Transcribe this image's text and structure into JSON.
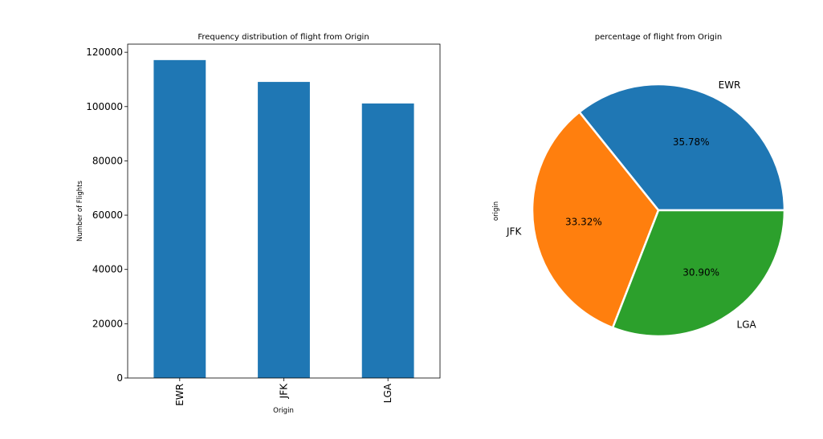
{
  "chart_data": [
    {
      "type": "bar",
      "title": "Frequency distribution of flight from Origin",
      "xlabel": "Origin",
      "ylabel": "Number of Flights",
      "categories": [
        "EWR",
        "JFK",
        "LGA"
      ],
      "values": [
        117127,
        109079,
        101140
      ],
      "ylim": [
        0,
        123000
      ],
      "yticks": [
        0,
        20000,
        40000,
        60000,
        80000,
        100000,
        120000
      ],
      "ytick_labels": [
        "0",
        "20000",
        "40000",
        "60000",
        "80000",
        "100000",
        "120000"
      ],
      "color": "#1f77b4",
      "grid": false
    },
    {
      "type": "pie",
      "title": "percentage of flight from Origin",
      "ylabel": "origin",
      "labels": [
        "EWR",
        "JFK",
        "LGA"
      ],
      "values": [
        35.78,
        33.32,
        30.9
      ],
      "value_labels": [
        "35.78%",
        "33.32%",
        "30.90%"
      ],
      "colors": [
        "#1f77b4",
        "#ff7f0e",
        "#2ca02c"
      ]
    }
  ]
}
